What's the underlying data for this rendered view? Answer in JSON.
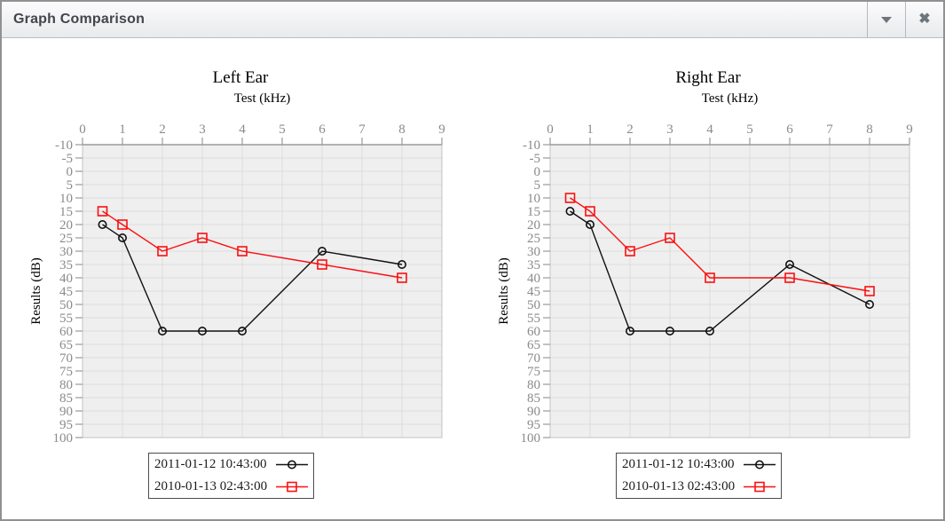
{
  "window": {
    "title": "Graph Comparison",
    "buttons": {
      "collapse_icon": "triangle-down",
      "close_icon": "✖"
    }
  },
  "colors": {
    "series_black": "#111111",
    "series_red": "#fb0f0f",
    "plot_bg": "#efefef",
    "gridline": "#dcdcdc",
    "axis": "#9a9a9a",
    "plot_border": "#c3c3c3",
    "tick_label": "#8a8a8a",
    "chart_text": "#000000"
  },
  "chart_data": [
    {
      "type": "line",
      "title": "Left Ear",
      "xlabel": "Test (kHz)",
      "ylabel": "Results (dB)",
      "xlim": [
        0,
        9
      ],
      "ylim": [
        -10,
        100
      ],
      "y_inverted": true,
      "grid": true,
      "legend_position": "bottom",
      "xticks": [
        0,
        1,
        2,
        3,
        4,
        5,
        6,
        7,
        8,
        9
      ],
      "yticks": [
        -10,
        -5,
        0,
        5,
        10,
        15,
        20,
        25,
        30,
        35,
        40,
        45,
        50,
        55,
        60,
        65,
        70,
        75,
        80,
        85,
        90,
        95,
        100
      ],
      "series": [
        {
          "name": "2011-01-12 10:43:00",
          "color": "#111111",
          "marker": "circle",
          "x": [
            0.5,
            1,
            2,
            3,
            4,
            6,
            8
          ],
          "y": [
            20,
            25,
            60,
            60,
            60,
            30,
            35
          ]
        },
        {
          "name": "2010-01-13 02:43:00",
          "color": "#fb0f0f",
          "marker": "square",
          "x": [
            0.5,
            1,
            2,
            3,
            4,
            6,
            8
          ],
          "y": [
            15,
            20,
            30,
            25,
            30,
            35,
            40
          ]
        }
      ]
    },
    {
      "type": "line",
      "title": "Right Ear",
      "xlabel": "Test (kHz)",
      "ylabel": "Results (dB)",
      "xlim": [
        0,
        9
      ],
      "ylim": [
        -10,
        100
      ],
      "y_inverted": true,
      "grid": true,
      "legend_position": "bottom",
      "xticks": [
        0,
        1,
        2,
        3,
        4,
        5,
        6,
        7,
        8,
        9
      ],
      "yticks": [
        -10,
        -5,
        0,
        5,
        10,
        15,
        20,
        25,
        30,
        35,
        40,
        45,
        50,
        55,
        60,
        65,
        70,
        75,
        80,
        85,
        90,
        95,
        100
      ],
      "series": [
        {
          "name": "2011-01-12 10:43:00",
          "color": "#111111",
          "marker": "circle",
          "x": [
            0.5,
            1,
            2,
            3,
            4,
            6,
            8
          ],
          "y": [
            15,
            20,
            60,
            60,
            60,
            35,
            50
          ]
        },
        {
          "name": "2010-01-13 02:43:00",
          "color": "#fb0f0f",
          "marker": "square",
          "x": [
            0.5,
            1,
            2,
            3,
            4,
            6,
            8
          ],
          "y": [
            10,
            15,
            30,
            25,
            40,
            40,
            45
          ]
        }
      ]
    }
  ]
}
